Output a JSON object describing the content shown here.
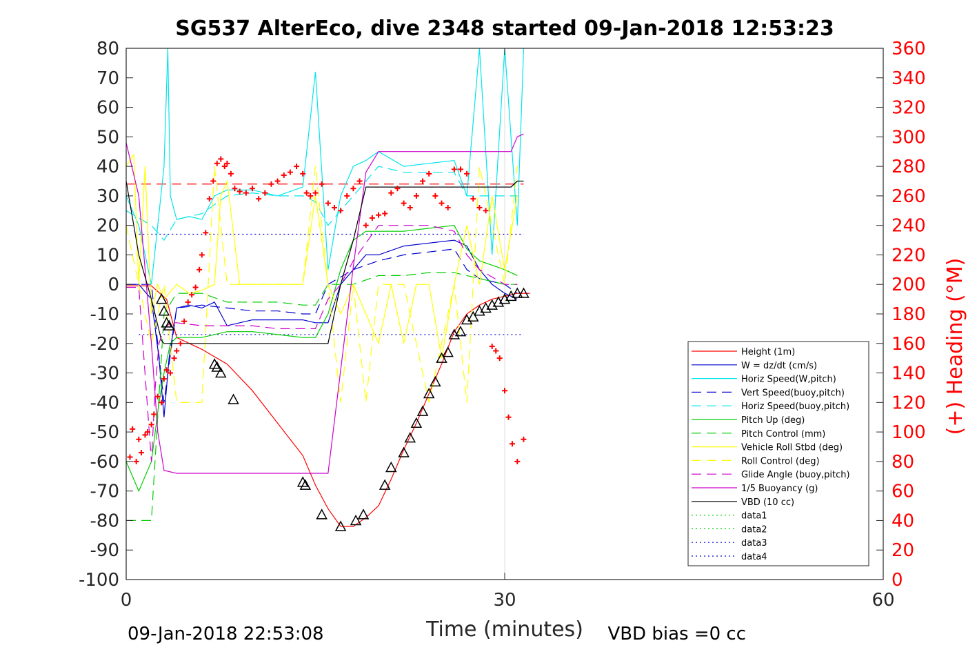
{
  "chart_data": {
    "type": "line",
    "title": "SG537 AlterEco, dive 2348 started 09-Jan-2018 12:53:23",
    "xlabel": "Time (minutes)",
    "ylabel": "",
    "ylabel_right": "(+) Heading (°M)",
    "xlim": [
      0,
      60
    ],
    "ylim": [
      -100,
      80
    ],
    "ylim_right": [
      0,
      360
    ],
    "x_ticks": [
      "0",
      "30",
      "60"
    ],
    "y_ticks": [
      "80",
      "70",
      "60",
      "50",
      "40",
      "30",
      "20",
      "10",
      "0",
      "-10",
      "-20",
      "-30",
      "-40",
      "-50",
      "-60",
      "-70",
      "-80",
      "-90",
      "-100"
    ],
    "y_ticks_right": [
      "360",
      "340",
      "320",
      "300",
      "280",
      "260",
      "240",
      "220",
      "200",
      "180",
      "160",
      "140",
      "120",
      "100",
      "80",
      "60",
      "40",
      "20",
      "0"
    ],
    "grid": "x-only at 30",
    "legend_position": "bottom-right",
    "footer_left": "09-Jan-2018 22:53:08",
    "footer_right": "VBD bias =0 cc",
    "series": [
      {
        "name": "Height (1m)",
        "color": "#ff0000",
        "style": "solid",
        "x": [
          0,
          2,
          3.2,
          4,
          6,
          8,
          10,
          12,
          14,
          15,
          16,
          17,
          18,
          19,
          20,
          21,
          22,
          23,
          24,
          25,
          26,
          27,
          28,
          29,
          30,
          31,
          32
        ],
        "y": [
          -0.5,
          -0.5,
          -5,
          -18,
          -22,
          -27,
          -36,
          -47,
          -58,
          -68,
          -76,
          -82,
          -82,
          -79,
          -75,
          -66,
          -56,
          -47,
          -37,
          -27,
          -16,
          -10,
          -7,
          -5,
          -4,
          -3,
          -3
        ]
      },
      {
        "name": "W = dz/dt (cm/s)",
        "color": "#0000cc",
        "style": "solid",
        "x": [
          0,
          1,
          2,
          2.6,
          3,
          3.4,
          4,
          5,
          6,
          7,
          8,
          10,
          12,
          14,
          15,
          16,
          17,
          18,
          19,
          20,
          22,
          24,
          26,
          27,
          28,
          29,
          30,
          31
        ],
        "y": [
          0,
          0,
          -5,
          -25,
          -45,
          -25,
          -8,
          -7,
          -8,
          -6,
          -14,
          -12,
          -12,
          -12,
          -13,
          -13,
          0,
          5,
          10,
          10,
          13,
          14,
          15,
          13,
          5,
          0,
          -3,
          -5
        ]
      },
      {
        "name": "Horiz Speed(W,pitch)",
        "color": "#00e5ee",
        "style": "solid",
        "x": [
          0,
          1,
          2,
          2.5,
          3,
          3.3,
          3.5,
          4,
          5,
          6,
          7,
          8,
          10,
          12,
          14,
          15,
          16,
          17,
          18,
          19,
          20,
          22,
          24,
          26,
          27,
          28,
          29,
          30,
          31,
          31.5
        ],
        "y": [
          30,
          20,
          0,
          20,
          40,
          80,
          30,
          22,
          23,
          22,
          30,
          32,
          32,
          30,
          33,
          72,
          5,
          30,
          40,
          42,
          45,
          40,
          41,
          42,
          30,
          80,
          10,
          80,
          20,
          80
        ]
      },
      {
        "name": "Vert Speed(buoy,pitch)",
        "color": "#0000cc",
        "style": "dashed",
        "x": [
          0,
          2,
          3,
          4,
          6,
          8,
          10,
          12,
          14,
          15,
          16,
          18,
          20,
          22,
          24,
          26,
          27,
          28,
          30,
          31
        ],
        "y": [
          0,
          0,
          -40,
          -8,
          -7,
          -8,
          -9,
          -9,
          -10,
          -10,
          0,
          5,
          8,
          10,
          11,
          12,
          5,
          2,
          0,
          -3
        ]
      },
      {
        "name": "Horiz Speed(buoy,pitch)",
        "color": "#00e5ee",
        "style": "dashed",
        "x": [
          0,
          2,
          3,
          4,
          6,
          8,
          10,
          12,
          14,
          15,
          16,
          18,
          20,
          22,
          24,
          26,
          27,
          28,
          30,
          31
        ],
        "y": [
          25,
          20,
          15,
          22,
          24,
          30,
          31,
          30,
          30,
          28,
          20,
          30,
          40,
          38,
          38,
          38,
          30,
          30,
          30,
          30
        ]
      },
      {
        "name": "Pitch Up (deg)",
        "color": "#00cc00",
        "style": "solid",
        "x": [
          0,
          1,
          2,
          2.6,
          3,
          3.5,
          4,
          6,
          8,
          10,
          12,
          14,
          15,
          16,
          17,
          18,
          19,
          20,
          22,
          24,
          26,
          27,
          28,
          30,
          31
        ],
        "y": [
          -60,
          -70,
          -60,
          -40,
          -30,
          -20,
          -18,
          -18,
          -16,
          -16,
          -17,
          -18,
          -18,
          -10,
          5,
          15,
          18,
          18,
          18,
          19,
          20,
          12,
          8,
          5,
          3
        ]
      },
      {
        "name": "Pitch Control (mm)",
        "color": "#00cc00",
        "style": "dashed",
        "x": [
          0,
          1,
          2,
          3,
          4,
          6,
          8,
          10,
          12,
          14,
          15,
          16,
          17,
          18,
          20,
          22,
          24,
          26,
          27,
          28,
          30,
          31
        ],
        "y": [
          -80,
          -80,
          -80,
          -10,
          -3,
          -3,
          -6,
          -6,
          -6,
          -7,
          -7,
          0,
          0,
          0,
          3,
          3,
          4,
          4,
          3,
          2,
          0,
          0
        ]
      },
      {
        "name": "Vehicle Roll Stbd (deg)",
        "color": "#ffff00",
        "style": "solid",
        "x": [
          0,
          0.6,
          1,
          1.5,
          2,
          2.5,
          3,
          4,
          5,
          6,
          7,
          7.5,
          8,
          9,
          10,
          12,
          14,
          15,
          16,
          17,
          18,
          19,
          20,
          21,
          22,
          23,
          24,
          25,
          26,
          27,
          28,
          29,
          30,
          31
        ],
        "y": [
          40,
          44,
          0,
          40,
          -10,
          0,
          -5,
          0,
          -3,
          -2,
          0,
          30,
          35,
          0,
          0,
          0,
          0,
          30,
          0,
          -10,
          0,
          -10,
          -20,
          0,
          -20,
          0,
          0,
          -25,
          0,
          20,
          0,
          30,
          5,
          30
        ]
      },
      {
        "name": "Roll Control (deg)",
        "color": "#ffff00",
        "style": "dashed",
        "x": [
          0,
          2,
          3,
          4,
          6,
          7,
          8,
          10,
          12,
          14,
          15,
          16,
          17,
          18,
          19,
          20,
          22,
          24,
          26,
          27,
          28,
          30,
          31
        ],
        "y": [
          20,
          -20,
          0,
          -40,
          -40,
          40,
          0,
          0,
          0,
          0,
          40,
          0,
          -40,
          0,
          -40,
          0,
          0,
          -40,
          0,
          -40,
          40,
          0,
          40
        ]
      },
      {
        "name": "Glide Angle (buoy,pitch)",
        "color": "#cc00cc",
        "style": "dashed",
        "x": [
          0,
          1,
          2,
          2.3,
          2.6,
          3,
          3.5,
          4,
          6,
          8,
          10,
          12,
          14,
          15,
          16,
          17,
          18,
          20,
          22,
          24,
          26,
          27,
          28,
          30,
          31
        ],
        "y": [
          -1,
          -1,
          -60,
          -35,
          -20,
          -15,
          -13,
          -13,
          -14,
          -14,
          -14,
          -15,
          -15,
          -15,
          -5,
          0,
          8,
          20,
          20,
          20,
          18,
          10,
          5,
          0,
          0
        ]
      },
      {
        "name": "1/5 Buoyancy (g)",
        "color": "#cc00cc",
        "style": "solid",
        "x": [
          0,
          1,
          2,
          2.5,
          3,
          4,
          6,
          8,
          10,
          12,
          14,
          15,
          16,
          18,
          19,
          20,
          22,
          24,
          26,
          28,
          30,
          30.5,
          31,
          31.5
        ],
        "y": [
          48,
          30,
          -20,
          -50,
          -63,
          -64,
          -64,
          -64,
          -64,
          -64,
          -64,
          -64,
          -64,
          6,
          38,
          45,
          45,
          45,
          45,
          45,
          45,
          45,
          50,
          51
        ]
      },
      {
        "name": "VBD (10 cc)",
        "color": "#000000",
        "style": "solid",
        "x": [
          0,
          1,
          2,
          2.8,
          3,
          4,
          6,
          8,
          10,
          12,
          14,
          15,
          16,
          17,
          18,
          19,
          20,
          22,
          24,
          26,
          28,
          30,
          30.5,
          31,
          31.5
        ],
        "y": [
          35,
          10,
          -5,
          -19,
          -20,
          -20,
          -20,
          -20,
          -20,
          -20,
          -20,
          -20,
          -20,
          0,
          15,
          33,
          33,
          33,
          33,
          33,
          33,
          33,
          33,
          35,
          35
        ]
      },
      {
        "name": "data1",
        "color": "#00cc00",
        "style": "dotted",
        "x": [],
        "y": []
      },
      {
        "name": "data2",
        "color": "#00cc00",
        "style": "dotted",
        "x": [],
        "y": []
      },
      {
        "name": "data3",
        "color": "#0000cc",
        "style": "dotted",
        "x": [],
        "y": []
      },
      {
        "name": "data4",
        "color": "#0000cc",
        "style": "dotted",
        "x": [],
        "y": []
      }
    ],
    "reference_lines": [
      {
        "y": 34,
        "color": "#ff0000",
        "style": "dashed",
        "x_from": 0,
        "x_to": 31.5
      },
      {
        "y": 17,
        "color": "#0000cc",
        "style": "dotted",
        "x_from": 1,
        "x_to": 31.5
      },
      {
        "y": -17,
        "color": "#0000cc",
        "style": "dotted",
        "x_from": 1,
        "x_to": 31.5
      }
    ],
    "heading_points": {
      "axis": "right",
      "color": "#ff0000",
      "x": [
        0.3,
        0.5,
        0.8,
        1.0,
        1.2,
        1.5,
        1.7,
        2.0,
        2.2,
        2.5,
        2.8,
        3.0,
        3.2,
        3.5,
        3.8,
        4.0,
        4.3,
        4.6,
        4.9,
        5.2,
        5.5,
        5.8,
        6.0,
        6.3,
        6.6,
        6.9,
        7.2,
        7.5,
        7.8,
        8.0,
        8.3,
        8.6,
        9.0,
        9.5,
        10.0,
        10.5,
        11.0,
        11.5,
        12.0,
        12.5,
        13.0,
        13.5,
        14.0,
        14.3,
        14.6,
        15.0,
        15.5,
        16.0,
        16.5,
        17.0,
        17.5,
        18.0,
        18.5,
        19.0,
        19.5,
        20.0,
        20.5,
        21.0,
        21.5,
        22.0,
        22.5,
        23.0,
        23.5,
        24.0,
        24.5,
        25.0,
        25.5,
        26.0,
        26.5,
        27.0,
        27.5,
        28.0,
        28.5,
        29.0,
        29.3,
        29.6,
        30.0,
        30.3,
        30.6,
        31.0,
        31.5
      ],
      "y": [
        83,
        102,
        80,
        95,
        86,
        98,
        100,
        105,
        112,
        124,
        120,
        136,
        142,
        140,
        150,
        155,
        160,
        175,
        188,
        193,
        198,
        210,
        220,
        235,
        258,
        270,
        282,
        285,
        280,
        282,
        275,
        265,
        263,
        262,
        265,
        258,
        262,
        268,
        270,
        274,
        276,
        280,
        275,
        262,
        260,
        262,
        268,
        255,
        252,
        250,
        260,
        265,
        270,
        240,
        245,
        247,
        248,
        262,
        265,
        255,
        252,
        260,
        270,
        275,
        260,
        255,
        252,
        278,
        278,
        275,
        258,
        252,
        250,
        158,
        155,
        150,
        128,
        110,
        92,
        80,
        95
      ]
    },
    "markers": {
      "style": "triangle",
      "color": "#000000",
      "x": [
        2.8,
        3.0,
        3.2,
        3.4,
        7.0,
        7.2,
        7.5,
        8.5,
        14.0,
        14.2,
        15.5,
        17.0,
        18.2,
        18.8,
        20.5,
        21.0,
        22.0,
        22.5,
        23.0,
        23.5,
        24.0,
        24.5,
        25.0,
        25.5,
        26.0,
        26.5,
        27.0,
        27.5,
        28.0,
        28.5,
        29.0,
        29.5,
        30.0,
        30.5,
        31.0,
        31.5
      ],
      "y": [
        -5,
        -9,
        -13,
        -14,
        -27,
        -28,
        -30,
        -39,
        -67,
        -68,
        -78,
        -82,
        -80,
        -78,
        -68,
        -62,
        -57,
        -52,
        -47,
        -43,
        -37,
        -33,
        -25,
        -23,
        -17,
        -16,
        -12,
        -11,
        -9,
        -8,
        -7,
        -6,
        -5,
        -4,
        -3,
        -3
      ]
    }
  }
}
